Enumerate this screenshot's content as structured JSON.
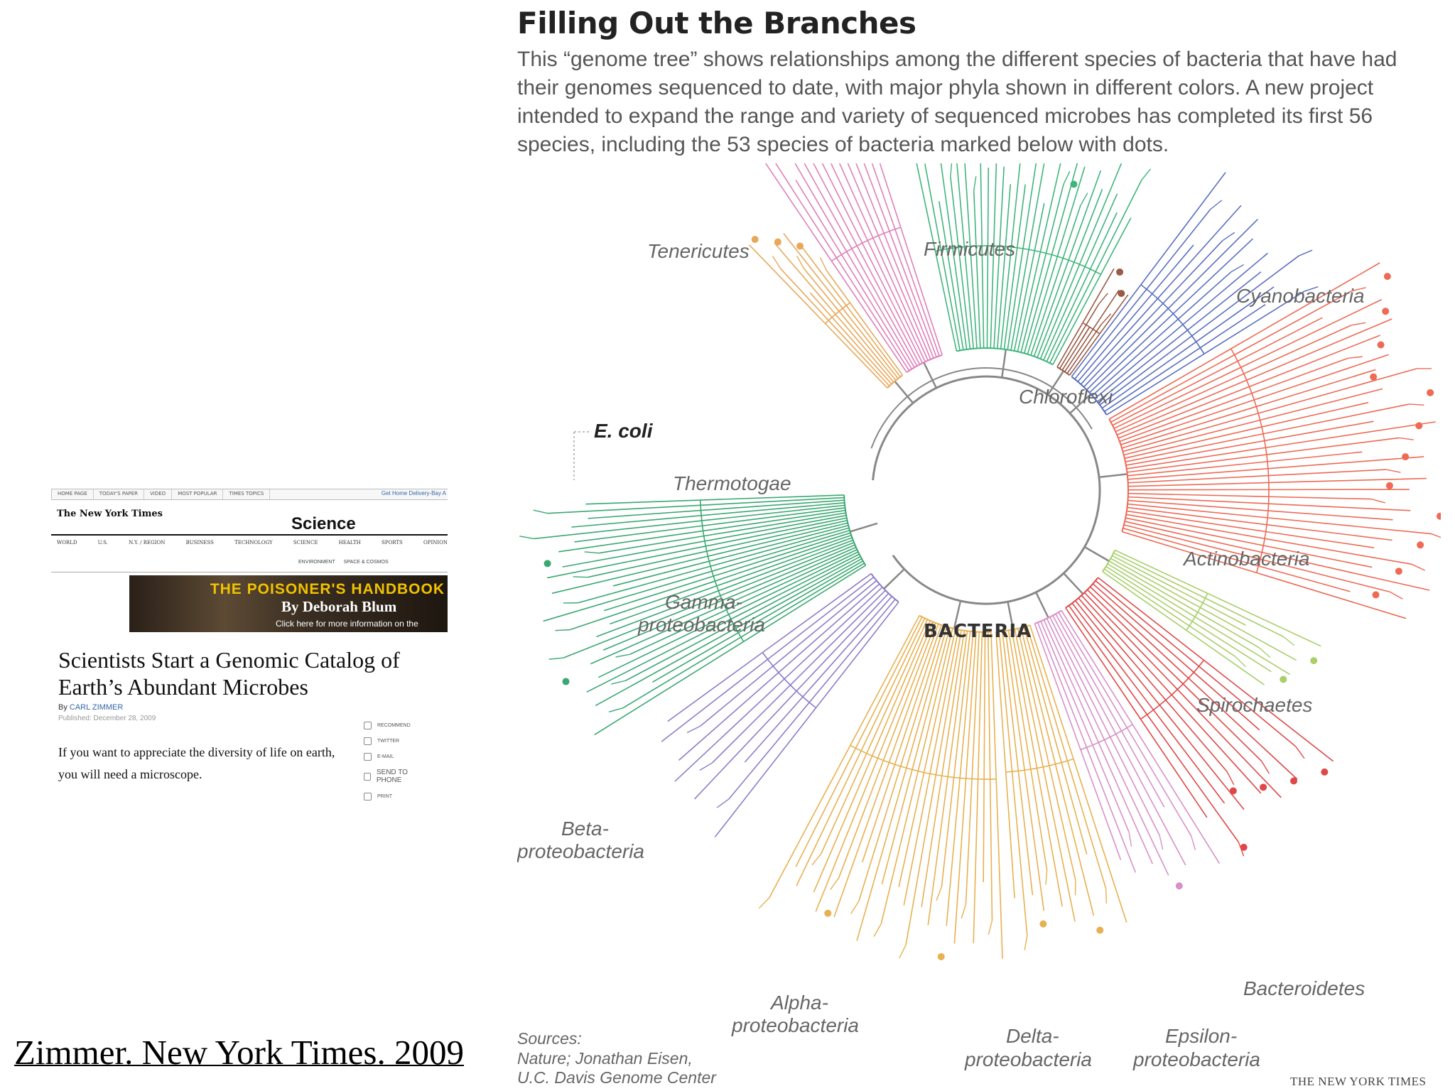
{
  "citation": "Zimmer. New York Times. 2009",
  "article": {
    "top_nav": [
      "HOME PAGE",
      "TODAY'S PAPER",
      "VIDEO",
      "MOST POPULAR",
      "TIMES TOPICS"
    ],
    "delivery_link": "Get Home Delivery-Bay A",
    "masthead": "The New York Times",
    "section": "Science",
    "section_nav": [
      "WORLD",
      "U.S.",
      "N.Y. / REGION",
      "BUSINESS",
      "TECHNOLOGY",
      "SCIENCE",
      "HEALTH",
      "SPORTS",
      "OPINION"
    ],
    "sub_nav": [
      "ENVIRONMENT",
      "SPACE & COSMOS"
    ],
    "ad": {
      "title": "THE POISONER'S HANDBOOK",
      "author": "By Deborah Blum",
      "cta": "Click here for more information on the"
    },
    "headline": "Scientists Start a Genomic Catalog of Earth’s Abundant Microbes",
    "byline_prefix": "By",
    "byline_author": "CARL ZIMMER",
    "published": "Published: December 28, 2009",
    "body": "If you want to appreciate the diversity of life on earth, you will need a microscope.",
    "tools": [
      "RECOMMEND",
      "TWITTER",
      "E-MAIL",
      "SEND TO PHONE",
      "PRINT"
    ]
  },
  "infographic": {
    "title": "Filling Out the Branches",
    "caption": "This “genome tree” shows relationships among the different species of bacteria that have had their genomes sequenced to date, with major phyla shown in different colors. A new project intended to expand the range and variety of sequenced microbes has completed its first 56 species, including the 53 species of bacteria marked below with dots.",
    "center": "BACTERIA",
    "ecoli": "E. coli",
    "phyla": [
      {
        "name": "Tenericutes",
        "color": "#e07fb8"
      },
      {
        "name": "Firmicutes",
        "color": "#3fb57a"
      },
      {
        "name": "Cyanobacteria",
        "color": "#5a6fc0"
      },
      {
        "name": "Chloroflexi",
        "color": "#9a5a45"
      },
      {
        "name": "Actinobacteria",
        "color": "#ee6a55"
      },
      {
        "name": "Thermotogae",
        "color": "#e8a85a"
      },
      {
        "name": "Gamma-proteobacteria",
        "color": "#3aa870"
      },
      {
        "name": "Beta-proteobacteria",
        "color": "#8f7cc8"
      },
      {
        "name": "Spirochaetes",
        "color": "#a8cf6a"
      },
      {
        "name": "Bacteroidetes",
        "color": "#e04848"
      },
      {
        "name": "Alpha-proteobacteria",
        "color": "#e8b050"
      },
      {
        "name": "Delta-proteobacteria",
        "color": "#e8b050"
      },
      {
        "name": "Epsilon-proteobacteria",
        "color": "#d890c8"
      }
    ],
    "labels": {
      "tenericutes": "Tenericutes",
      "firmicutes": "Firmicutes",
      "cyanobacteria": "Cyanobacteria",
      "chloroflexi": "Chloroflexi",
      "actinobacteria": "Actinobacteria",
      "thermotogae": "Thermotogae",
      "gamma_1": "Gamma-",
      "gamma_2": "proteobacteria",
      "beta_1": "Beta-",
      "beta_2": "proteobacteria",
      "spirochaetes": "Spirochaetes",
      "bacteroidetes": "Bacteroidetes",
      "alpha_1": "Alpha-",
      "alpha_2": "proteobacteria",
      "delta_1": "Delta-",
      "delta_2": "proteobacteria",
      "epsilon_1": "Epsilon-",
      "epsilon_2": "proteobacteria"
    },
    "sources_1": "Sources:",
    "sources_2": "Nature; Jonathan Eisen,",
    "sources_3": "U.C. Davis Genome Center",
    "credit": "THE NEW YORK TIMES",
    "trunk_color": "#888888"
  }
}
